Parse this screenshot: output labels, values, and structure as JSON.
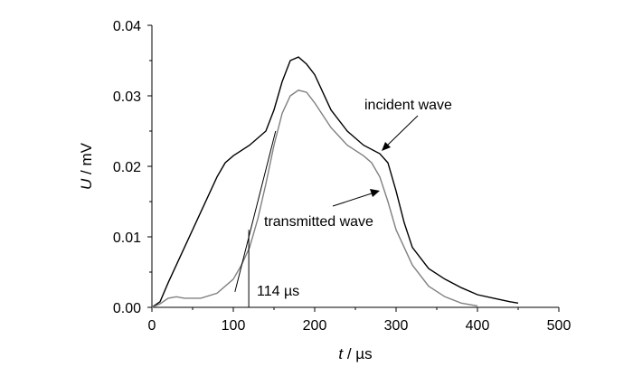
{
  "chart_data": {
    "type": "line",
    "xlabel_var": "t",
    "xlabel_unit": " / µs",
    "ylabel_var": "U",
    "ylabel_unit": " / mV",
    "xlim": [
      0,
      500
    ],
    "ylim": [
      0,
      0.04
    ],
    "xticks": [
      0,
      100,
      200,
      300,
      400,
      500
    ],
    "yticks": [
      0.0,
      0.01,
      0.02,
      0.03,
      0.04
    ],
    "xtick_labels": [
      "0",
      "100",
      "200",
      "300",
      "400",
      "500"
    ],
    "ytick_labels": [
      "0.00",
      "0.01",
      "0.02",
      "0.03",
      "0.04"
    ],
    "grid": false,
    "series": [
      {
        "name": "incident wave",
        "color": "#000000",
        "x": [
          0,
          10,
          20,
          40,
          60,
          80,
          90,
          100,
          120,
          140,
          150,
          160,
          170,
          180,
          190,
          200,
          220,
          240,
          260,
          280,
          290,
          300,
          310,
          320,
          340,
          360,
          380,
          400,
          420,
          440,
          450
        ],
        "y": [
          0.0,
          0.0008,
          0.0035,
          0.0085,
          0.0135,
          0.0185,
          0.0205,
          0.0215,
          0.023,
          0.025,
          0.028,
          0.032,
          0.035,
          0.0355,
          0.0345,
          0.033,
          0.028,
          0.025,
          0.023,
          0.0218,
          0.0205,
          0.0165,
          0.012,
          0.0085,
          0.0055,
          0.004,
          0.0028,
          0.0018,
          0.0013,
          0.0008,
          0.0006
        ]
      },
      {
        "name": "transmitted wave",
        "color": "#808080",
        "x": [
          0,
          10,
          20,
          30,
          40,
          60,
          80,
          100,
          110,
          120,
          130,
          140,
          150,
          160,
          170,
          180,
          190,
          200,
          220,
          240,
          260,
          270,
          280,
          290,
          300,
          320,
          340,
          360,
          380,
          400
        ],
        "y": [
          0.0,
          0.0005,
          0.0013,
          0.0015,
          0.0013,
          0.0013,
          0.002,
          0.004,
          0.006,
          0.0085,
          0.0125,
          0.0175,
          0.023,
          0.0275,
          0.03,
          0.0308,
          0.0305,
          0.029,
          0.0255,
          0.023,
          0.0215,
          0.0205,
          0.0185,
          0.015,
          0.011,
          0.006,
          0.003,
          0.0015,
          0.0006,
          0.0002
        ]
      }
    ],
    "annotations": {
      "incident_label": "incident wave",
      "transmitted_label": "transmitted wave",
      "onset_label": "114 µs",
      "onset_x": 114,
      "tangent_line": {
        "x1": 102,
        "y1": 0.0022,
        "x2": 152,
        "y2": 0.025
      },
      "onset_marker": {
        "x": 119,
        "y_top": 0.011
      }
    }
  }
}
